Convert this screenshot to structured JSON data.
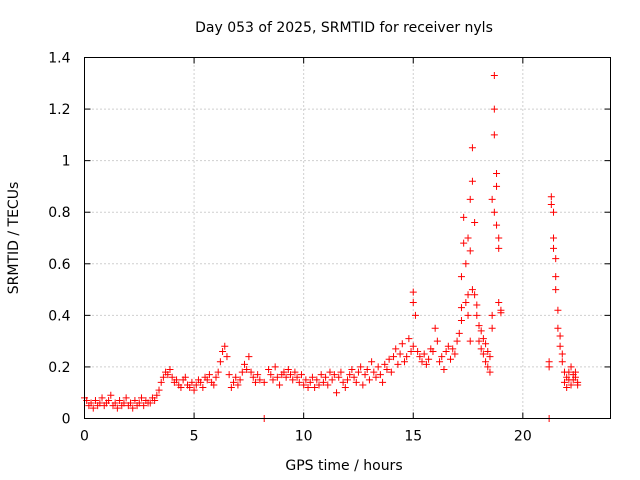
{
  "chart_data": {
    "type": "scatter",
    "title": "Day 053 of 2025, SRMTID for receiver nyls",
    "xlabel": "GPS time / hours",
    "ylabel": "SRMTID / TECUs",
    "xlim": [
      0,
      24
    ],
    "ylim": [
      0,
      1.4
    ],
    "xticks": [
      0,
      5,
      10,
      15,
      20
    ],
    "xtick_labels": [
      "0",
      "5",
      "10",
      "15",
      "20"
    ],
    "yticks": [
      0,
      0.2,
      0.4,
      0.6,
      0.8,
      1.0,
      1.2,
      1.4
    ],
    "ytick_labels": [
      "0",
      "0.2",
      "0.4",
      "0.6",
      "0.8",
      "1",
      "1.2",
      "1.4"
    ],
    "grid": true,
    "marker": "plus",
    "color": "#ff0000",
    "series": [
      {
        "name": "SRMTID",
        "x": [
          0.0,
          0.1,
          0.2,
          0.3,
          0.4,
          0.5,
          0.6,
          0.7,
          0.8,
          0.9,
          1.0,
          1.1,
          1.2,
          1.3,
          1.4,
          1.5,
          1.6,
          1.7,
          1.8,
          1.9,
          2.0,
          2.1,
          2.2,
          2.3,
          2.4,
          2.5,
          2.6,
          2.7,
          2.8,
          2.9,
          3.0,
          3.1,
          3.2,
          3.3,
          3.4,
          3.5,
          3.6,
          3.7,
          3.8,
          3.9,
          4.0,
          4.1,
          4.2,
          4.3,
          4.4,
          4.5,
          4.6,
          4.7,
          4.8,
          4.9,
          5.0,
          5.1,
          5.2,
          5.3,
          5.4,
          5.5,
          5.6,
          5.7,
          5.8,
          5.9,
          6.0,
          6.1,
          6.2,
          6.3,
          6.4,
          6.5,
          6.6,
          6.7,
          6.8,
          6.9,
          7.0,
          7.1,
          7.2,
          7.3,
          7.4,
          7.5,
          7.6,
          7.7,
          7.8,
          7.9,
          8.0,
          8.2,
          8.4,
          8.5,
          8.6,
          8.7,
          8.8,
          8.9,
          9.0,
          9.1,
          9.2,
          9.3,
          9.4,
          9.5,
          9.6,
          9.7,
          9.8,
          9.9,
          10.0,
          10.1,
          10.2,
          10.3,
          10.4,
          10.5,
          10.6,
          10.7,
          10.8,
          10.9,
          11.0,
          11.1,
          11.2,
          11.3,
          11.4,
          11.5,
          11.6,
          11.7,
          11.8,
          11.9,
          12.0,
          12.1,
          12.2,
          12.3,
          12.4,
          12.5,
          12.6,
          12.7,
          12.8,
          12.9,
          13.0,
          13.1,
          13.2,
          13.3,
          13.4,
          13.5,
          13.6,
          13.7,
          13.8,
          13.9,
          14.0,
          14.1,
          14.2,
          14.3,
          14.4,
          14.5,
          14.6,
          14.7,
          14.8,
          14.9,
          15.0,
          15.0,
          15.0,
          15.1,
          15.2,
          15.3,
          15.4,
          15.5,
          15.6,
          15.7,
          15.8,
          15.9,
          16.0,
          16.1,
          16.2,
          16.3,
          16.4,
          16.5,
          16.6,
          16.7,
          16.8,
          16.9,
          17.0,
          17.1,
          17.2,
          17.2,
          17.2,
          17.3,
          17.3,
          17.4,
          17.4,
          17.5,
          17.5,
          17.5,
          17.6,
          17.6,
          17.6,
          17.7,
          17.7,
          17.7,
          17.8,
          17.8,
          17.9,
          17.9,
          18.0,
          18.0,
          18.1,
          18.1,
          18.2,
          18.2,
          18.3,
          18.3,
          18.4,
          18.4,
          18.5,
          18.5,
          18.6,
          18.6,
          18.6,
          18.7,
          18.7,
          18.7,
          18.7,
          18.8,
          18.8,
          18.8,
          18.9,
          18.9,
          18.9,
          19.0,
          19.0,
          21.2,
          21.2,
          21.3,
          21.3,
          21.4,
          21.4,
          21.4,
          21.5,
          21.5,
          21.5,
          21.6,
          21.6,
          21.7,
          21.7,
          21.8,
          21.8,
          21.9,
          21.9,
          22.0,
          22.0,
          22.1,
          22.1,
          22.2,
          22.2,
          22.3,
          22.3,
          22.4,
          22.4,
          22.5,
          22.5,
          8.2,
          21.2
        ],
        "y": [
          0.08,
          0.07,
          0.05,
          0.06,
          0.04,
          0.07,
          0.05,
          0.06,
          0.08,
          0.05,
          0.06,
          0.07,
          0.09,
          0.05,
          0.06,
          0.04,
          0.07,
          0.05,
          0.06,
          0.08,
          0.05,
          0.06,
          0.04,
          0.07,
          0.05,
          0.06,
          0.08,
          0.05,
          0.07,
          0.06,
          0.06,
          0.08,
          0.07,
          0.09,
          0.11,
          0.14,
          0.16,
          0.18,
          0.17,
          0.19,
          0.16,
          0.14,
          0.15,
          0.13,
          0.12,
          0.15,
          0.16,
          0.13,
          0.12,
          0.14,
          0.11,
          0.13,
          0.15,
          0.14,
          0.12,
          0.16,
          0.15,
          0.17,
          0.14,
          0.13,
          0.16,
          0.18,
          0.22,
          0.26,
          0.28,
          0.24,
          0.17,
          0.12,
          0.14,
          0.16,
          0.13,
          0.15,
          0.18,
          0.21,
          0.19,
          0.24,
          0.18,
          0.16,
          0.14,
          0.17,
          0.15,
          0.14,
          0.19,
          0.17,
          0.15,
          0.2,
          0.16,
          0.13,
          0.17,
          0.18,
          0.16,
          0.19,
          0.17,
          0.15,
          0.18,
          0.16,
          0.14,
          0.17,
          0.13,
          0.15,
          0.12,
          0.14,
          0.16,
          0.12,
          0.15,
          0.13,
          0.17,
          0.14,
          0.16,
          0.13,
          0.18,
          0.15,
          0.17,
          0.1,
          0.16,
          0.18,
          0.14,
          0.12,
          0.15,
          0.17,
          0.19,
          0.16,
          0.14,
          0.18,
          0.2,
          0.13,
          0.17,
          0.19,
          0.15,
          0.22,
          0.18,
          0.16,
          0.2,
          0.17,
          0.14,
          0.21,
          0.19,
          0.23,
          0.18,
          0.24,
          0.27,
          0.21,
          0.25,
          0.29,
          0.22,
          0.24,
          0.31,
          0.26,
          0.28,
          0.45,
          0.49,
          0.4,
          0.26,
          0.24,
          0.22,
          0.25,
          0.21,
          0.23,
          0.27,
          0.26,
          0.35,
          0.3,
          0.22,
          0.24,
          0.19,
          0.26,
          0.28,
          0.23,
          0.27,
          0.25,
          0.3,
          0.33,
          0.38,
          0.43,
          0.55,
          0.68,
          0.78,
          0.45,
          0.6,
          0.48,
          0.7,
          0.4,
          0.3,
          0.85,
          0.65,
          0.5,
          1.05,
          0.92,
          0.76,
          0.48,
          0.44,
          0.4,
          0.36,
          0.3,
          0.34,
          0.27,
          0.31,
          0.25,
          0.29,
          0.22,
          0.26,
          0.2,
          0.24,
          0.18,
          0.35,
          0.4,
          0.85,
          0.8,
          1.2,
          1.33,
          1.1,
          0.95,
          0.9,
          0.75,
          0.7,
          0.66,
          0.45,
          0.42,
          0.41,
          0.22,
          0.2,
          0.86,
          0.83,
          0.8,
          0.7,
          0.66,
          0.62,
          0.55,
          0.5,
          0.42,
          0.35,
          0.32,
          0.28,
          0.25,
          0.22,
          0.18,
          0.14,
          0.16,
          0.12,
          0.18,
          0.15,
          0.2,
          0.13,
          0.17,
          0.15,
          0.18,
          0.16,
          0.14,
          0.13,
          0.0,
          0.0
        ]
      }
    ]
  }
}
